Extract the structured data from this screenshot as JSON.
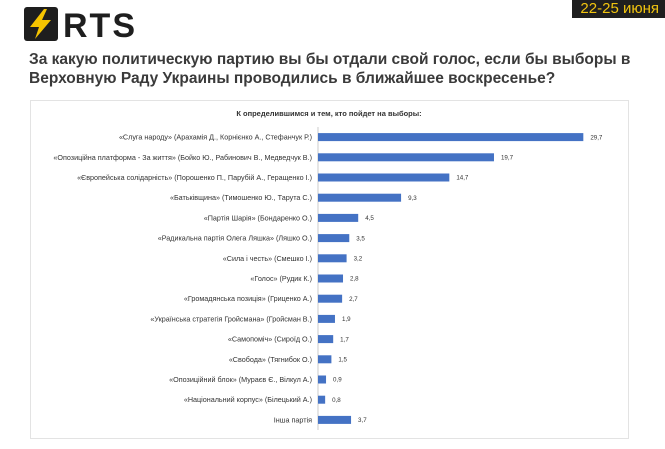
{
  "brand": {
    "logo_text": "RTS",
    "accent": "#f5c400",
    "badge_bg": "#1f1f1f"
  },
  "date_badge": "22-25 июня",
  "headline": "За какую политическую партию вы бы отдали свой голос, если бы выборы в Верховную Раду Украины проводились в ближайшее воскресенье?",
  "chart_data": {
    "type": "bar",
    "orientation": "horizontal",
    "title": "К определившимся и тем, кто пойдет на выборы:",
    "categories": [
      "«Слуга народу» (Арахамія Д., Корнієнко А., Стефанчук Р.)",
      "«Опозиційна платформа - За життя» (Бойко Ю., Рабинович В., Медведчук В.)",
      "«Європейська солідарність» (Порошенко П., Парубій А., Геращенко І.)",
      "«Батьківщина» (Тимошенко Ю., Тарута С.)",
      "«Партія Шарія» (Бондаренко О.)",
      "«Радикальна партія Олега Ляшка» (Ляшко О.)",
      "«Сила і честь» (Смешко І.)",
      "«Голос» (Рудик К.)",
      "«Громадянська позиція» (Гриценко А.)",
      "«Українська стратегія Гройсмана» (Гройсман В.)",
      "«Самопоміч» (Сироїд О.)",
      "«Свобода» (Тягнибок О.)",
      "«Опозиційний блок» (Мураєв Є., Вілкул А.)",
      "«Національний корпус» (Білецький А.)",
      "Інша партія"
    ],
    "values": [
      29.7,
      19.7,
      14.7,
      9.3,
      4.5,
      3.5,
      3.2,
      2.8,
      2.7,
      1.9,
      1.7,
      1.5,
      0.9,
      0.8,
      3.7
    ],
    "value_labels": [
      "29,7",
      "19,7",
      "14,7",
      "9,3",
      "4,5",
      "3,5",
      "3,2",
      "2,8",
      "2,7",
      "1,9",
      "1,7",
      "1,5",
      "0,9",
      "0,8",
      "3,7"
    ],
    "xlim": [
      0,
      30
    ],
    "bar_color": "#4472c4",
    "grid": false,
    "legend": "none"
  }
}
